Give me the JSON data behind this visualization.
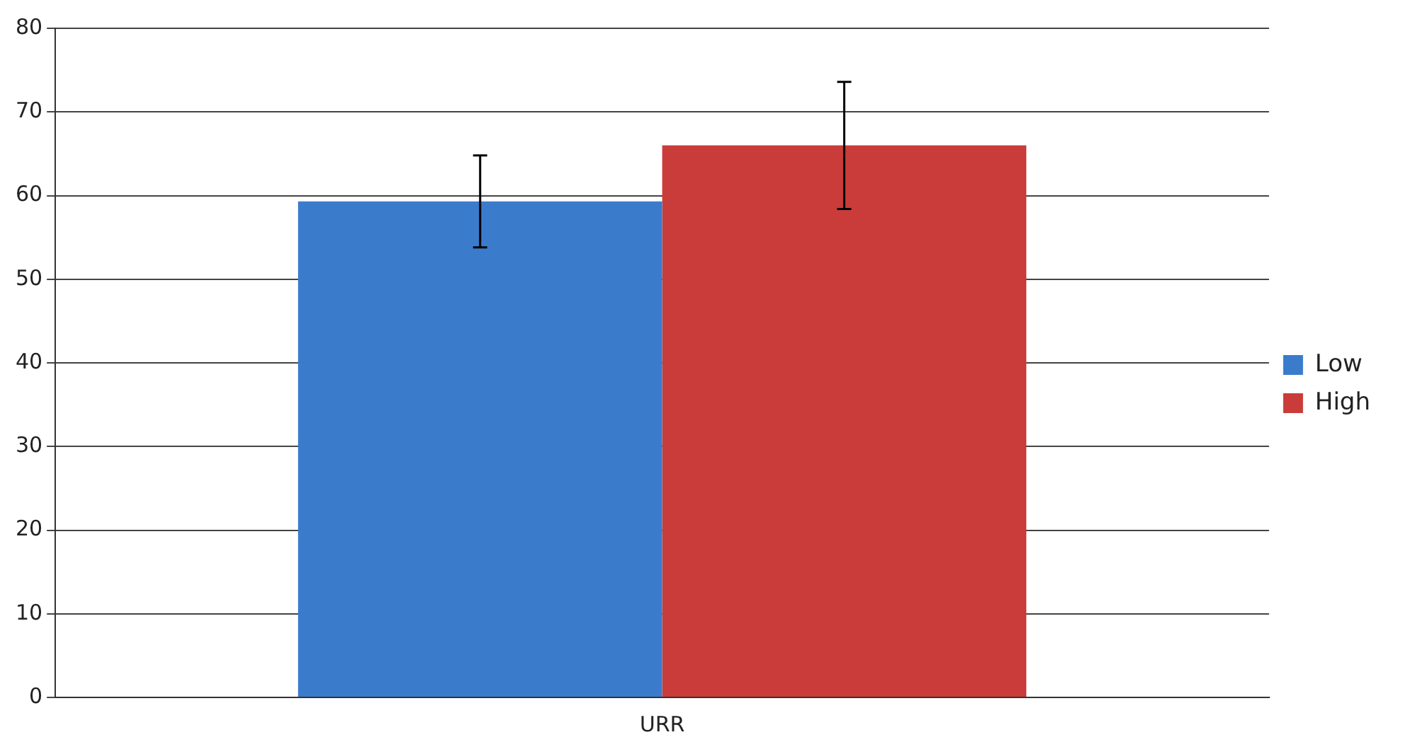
{
  "chart_data": {
    "type": "bar",
    "categories": [
      "URR"
    ],
    "series": [
      {
        "name": "Low",
        "color": "#3b7bcb",
        "values": [
          59.3
        ],
        "errors": [
          5.5
        ]
      },
      {
        "name": "High",
        "color": "#c93c39",
        "values": [
          66.0
        ],
        "errors": [
          7.6
        ]
      }
    ],
    "ylim": [
      0,
      80
    ],
    "yticks": [
      0,
      10,
      20,
      30,
      40,
      50,
      60,
      70,
      80
    ],
    "grid": "y",
    "legend": "right"
  }
}
